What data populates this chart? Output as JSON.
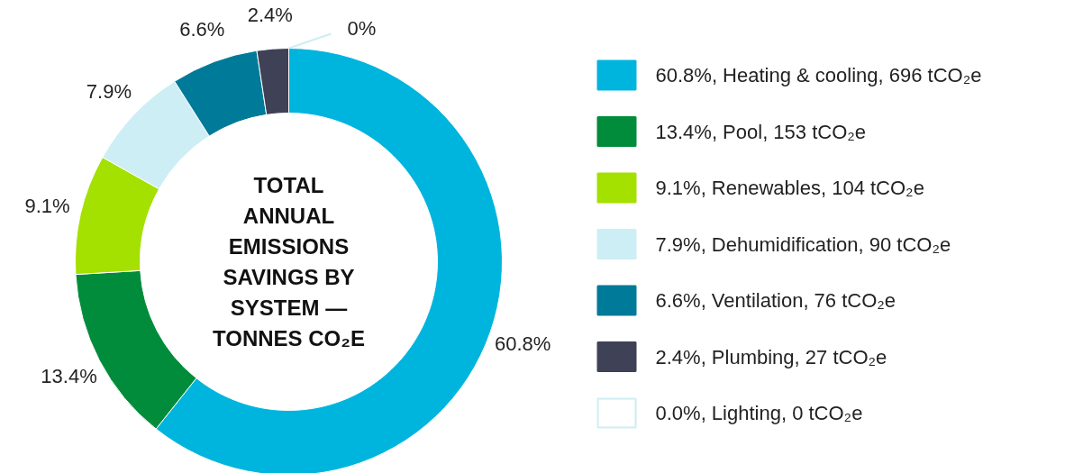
{
  "chart_data": {
    "type": "donut",
    "title": "TOTAL ANNUAL EMISSIONS SAVINGS BY SYSTEM — TONNES CO₂E",
    "categories": [
      "60.8%, Heating & cooling, 696 tCO₂e",
      "13.4%, Pool, 153 tCO₂e",
      "9.1%, Renewables, 104 tCO₂e",
      "7.9%, Dehumidification, 90 tCO₂e",
      "6.6%, Ventilation, 76 tCO₂e",
      "2.4%, Plumbing, 27 tCO₂e",
      "0.0%, Lighting, 0 tCO₂e"
    ],
    "values": [
      60.8,
      13.4,
      9.1,
      7.9,
      6.6,
      2.4,
      0
    ],
    "value_labels": [
      "60.8%",
      "13.4%",
      "9.1%",
      "7.9%",
      "6.6%",
      "2.4%",
      "0%"
    ],
    "colors": [
      "#00b5dd",
      "#008c3a",
      "#a4e000",
      "#cdeef5",
      "#007a99",
      "#3f4157",
      "#ffffff"
    ],
    "legend": "right"
  }
}
